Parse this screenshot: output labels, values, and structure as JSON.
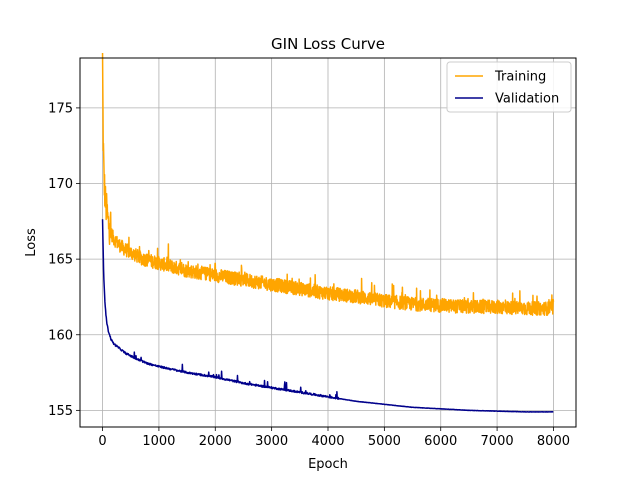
{
  "chart_data": {
    "type": "line",
    "title": "GIN Loss Curve",
    "xlabel": "Epoch",
    "ylabel": "Loss",
    "xlim": [
      -400,
      8400
    ],
    "ylim": [
      153.9,
      178.3
    ],
    "xticks": [
      0,
      1000,
      2000,
      3000,
      4000,
      5000,
      6000,
      7000,
      8000
    ],
    "xtick_labels": [
      "0",
      "1000",
      "2000",
      "3000",
      "4000",
      "5000",
      "6000",
      "7000",
      "8000"
    ],
    "yticks": [
      155,
      160,
      165,
      170,
      175
    ],
    "ytick_labels": [
      "155",
      "160",
      "165",
      "170",
      "175"
    ],
    "grid": true,
    "legend_position": "top-right",
    "series": [
      {
        "name": "Training",
        "color": "#FFA500",
        "noise": "high",
        "x": [
          0,
          10,
          25,
          50,
          100,
          150,
          200,
          300,
          400,
          500,
          700,
          1000,
          1500,
          2000,
          2500,
          3000,
          3500,
          4000,
          4500,
          5000,
          5500,
          6000,
          6500,
          7000,
          7500,
          8000
        ],
        "y": [
          177.9,
          173.0,
          170.0,
          168.5,
          167.0,
          166.6,
          166.2,
          165.8,
          165.5,
          165.3,
          164.9,
          164.6,
          164.1,
          163.8,
          163.5,
          163.2,
          162.9,
          162.6,
          162.4,
          162.1,
          161.9,
          161.8,
          161.7,
          161.7,
          161.6,
          161.6
        ]
      },
      {
        "name": "Validation",
        "color": "#00008B",
        "noise": "low",
        "x": [
          0,
          20,
          40,
          60,
          80,
          100,
          150,
          200,
          300,
          400,
          600,
          800,
          1000,
          1500,
          2000,
          2500,
          3000,
          3500,
          4000,
          4500,
          5000,
          5500,
          6000,
          6500,
          7000,
          7500,
          8000
        ],
        "y": [
          167.6,
          164.0,
          162.3,
          161.3,
          160.7,
          160.3,
          159.7,
          159.4,
          159.1,
          158.8,
          158.4,
          158.1,
          157.9,
          157.5,
          157.2,
          156.8,
          156.5,
          156.2,
          155.9,
          155.6,
          155.4,
          155.2,
          155.1,
          155.0,
          154.95,
          154.9,
          154.9
        ]
      }
    ]
  }
}
